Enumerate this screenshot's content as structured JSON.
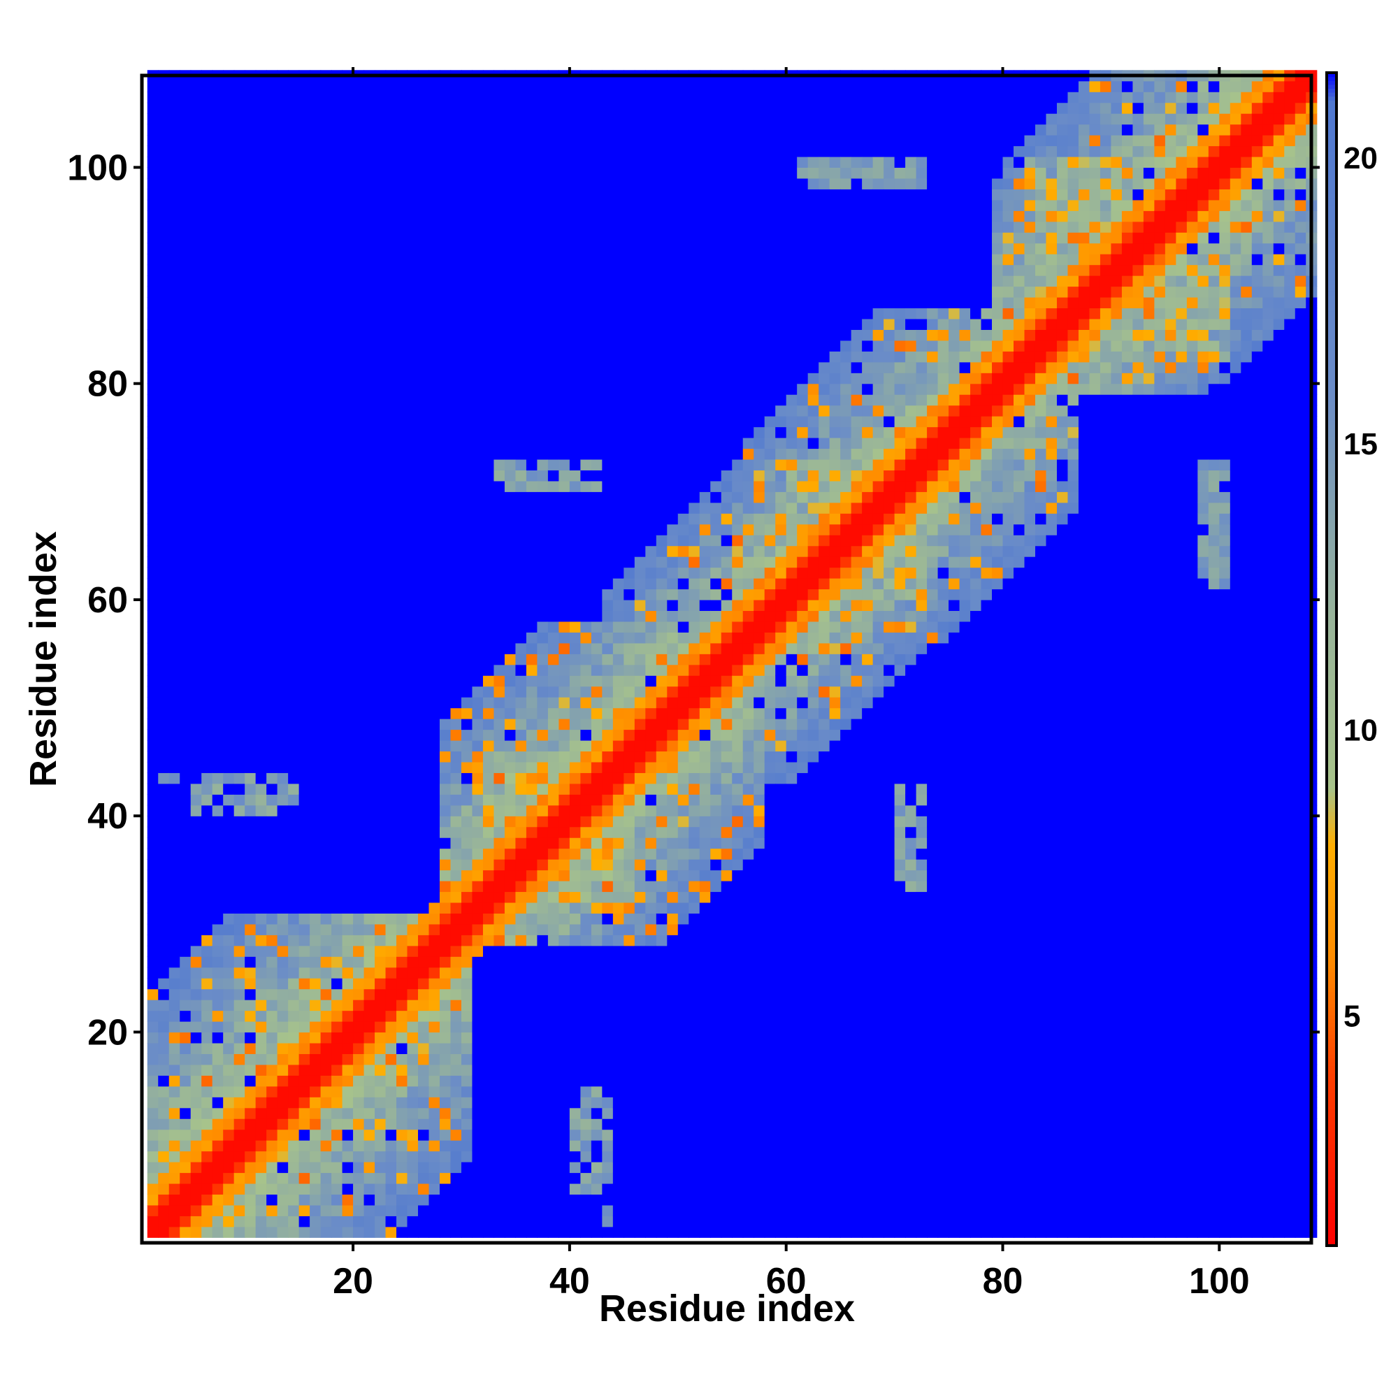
{
  "chart_data": {
    "type": "heatmap",
    "title": "",
    "xlabel": "Residue index",
    "ylabel": "Residue index",
    "xlim": [
      1,
      108
    ],
    "ylim": [
      1,
      108
    ],
    "xticks": [
      20,
      40,
      60,
      80,
      100
    ],
    "yticks": [
      20,
      40,
      60,
      80,
      100
    ],
    "colorbar": {
      "range": [
        1,
        21.5
      ],
      "ticks": [
        5,
        10,
        15,
        20
      ],
      "stops": [
        {
          "value": 1.0,
          "color": "#ff0000"
        },
        {
          "value": 4.0,
          "color": "#ff4000"
        },
        {
          "value": 6.0,
          "color": "#ff8c00"
        },
        {
          "value": 8.0,
          "color": "#ffae00"
        },
        {
          "value": 9.0,
          "color": "#a8c48a"
        },
        {
          "value": 12.0,
          "color": "#98b49a"
        },
        {
          "value": 16.0,
          "color": "#6a8cc8"
        },
        {
          "value": 21.0,
          "color": "#5078d0"
        },
        {
          "value": 21.5,
          "color": "#0000ff"
        }
      ]
    },
    "domains": [
      {
        "range": [
          1,
          30
        ],
        "contact": 8,
        "band": 22
      },
      {
        "range": [
          28,
          57
        ],
        "contact": 7,
        "band": 20
      },
      {
        "range": [
          43,
          84
        ],
        "contact": 8,
        "band": 17
      },
      {
        "range": [
          56,
          86
        ],
        "contact": 7,
        "band": 18
      },
      {
        "range": [
          79,
          108
        ],
        "contact": 8,
        "band": 20
      }
    ],
    "off_diagonal_clusters": [
      {
        "x": [
          36,
          45
        ],
        "y": [
          32,
          40
        ],
        "value": 12
      },
      {
        "x": [
          60,
          66
        ],
        "y": [
          55,
          70
        ],
        "value": 13
      },
      {
        "x": [
          66,
          72
        ],
        "y": [
          60,
          72
        ],
        "value": 13
      },
      {
        "x": [
          92,
          100
        ],
        "y": [
          82,
          90
        ],
        "value": 13
      }
    ],
    "spur_arms": [
      {
        "x": [
          2,
          14
        ],
        "y": [
          43,
          43
        ],
        "value": 14
      },
      {
        "x": [
          34,
          42
        ],
        "y": [
          70,
          70
        ],
        "value": 14
      },
      {
        "x": [
          62,
          70
        ],
        "y": [
          99,
          99
        ],
        "value": 14
      },
      {
        "x": [
          40,
          42
        ],
        "y": [
          5,
          14
        ],
        "value": 14
      },
      {
        "x": [
          70,
          72
        ],
        "y": [
          33,
          42
        ],
        "value": 14
      },
      {
        "x": [
          98,
          100
        ],
        "y": [
          61,
          72
        ],
        "value": 14
      }
    ],
    "background_value": 21.5
  }
}
